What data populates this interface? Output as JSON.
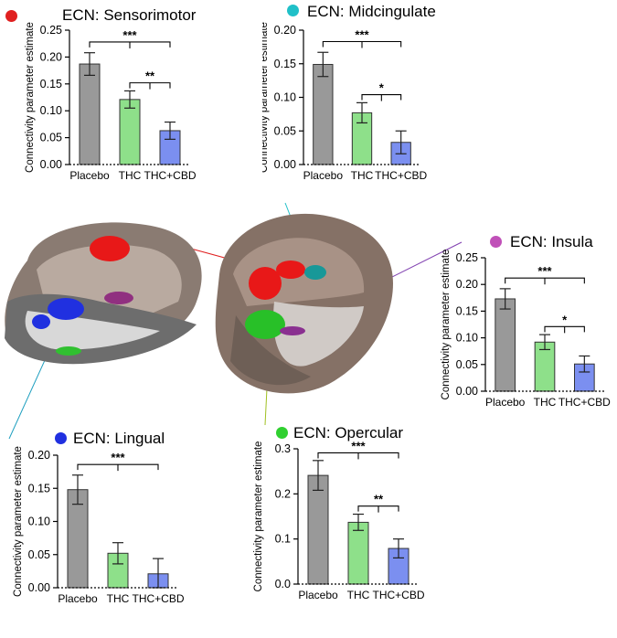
{
  "chart_data": [
    {
      "type": "bar",
      "title": "ECN: Sensorimotor",
      "dot_color": "#e02020",
      "ylabel": "Connectivity parameter estimate",
      "categories": [
        "Placebo",
        "THC",
        "THC+CBD"
      ],
      "values": [
        0.187,
        0.121,
        0.063
      ],
      "errors": [
        0.021,
        0.016,
        0.016
      ],
      "ylim": [
        0,
        0.25
      ],
      "yticks": [
        "0.00",
        "0.05",
        "0.10",
        "0.15",
        "0.20",
        "0.25"
      ],
      "brackets": [
        {
          "from": 0,
          "to": 2,
          "label": "***"
        },
        {
          "from": 1,
          "to": 2,
          "label": "**"
        }
      ]
    },
    {
      "type": "bar",
      "title": "ECN: Midcingulate",
      "dot_color": "#20c0c8",
      "ylabel": "Connectivity parameter estimate",
      "categories": [
        "Placebo",
        "THC",
        "THC+CBD"
      ],
      "values": [
        0.149,
        0.077,
        0.033
      ],
      "errors": [
        0.018,
        0.015,
        0.017
      ],
      "ylim": [
        0,
        0.2
      ],
      "yticks": [
        "0.00",
        "0.05",
        "0.10",
        "0.15",
        "0.20"
      ],
      "brackets": [
        {
          "from": 0,
          "to": 2,
          "label": "***"
        },
        {
          "from": 1,
          "to": 2,
          "label": "*"
        }
      ]
    },
    {
      "type": "bar",
      "title": "ECN: Insula",
      "dot_color": "#c050b8",
      "ylabel": "Connectivity parameter estimate",
      "categories": [
        "Placebo",
        "THC",
        "THC+CBD"
      ],
      "values": [
        0.173,
        0.092,
        0.051
      ],
      "errors": [
        0.019,
        0.014,
        0.015
      ],
      "ylim": [
        0,
        0.25
      ],
      "yticks": [
        "0.00",
        "0.05",
        "0.10",
        "0.15",
        "0.20",
        "0.25"
      ],
      "brackets": [
        {
          "from": 0,
          "to": 2,
          "label": "***"
        },
        {
          "from": 1,
          "to": 2,
          "label": "*"
        }
      ]
    },
    {
      "type": "bar",
      "title": "ECN: Lingual",
      "dot_color": "#2030e0",
      "ylabel": "Connectivity parameter estimate",
      "categories": [
        "Placebo",
        "THC",
        "THC+CBD"
      ],
      "values": [
        0.148,
        0.052,
        0.021
      ],
      "errors": [
        0.022,
        0.016,
        0.023
      ],
      "ylim": [
        0,
        0.2
      ],
      "yticks": [
        "0.00",
        "0.05",
        "0.10",
        "0.15",
        "0.20"
      ],
      "brackets": [
        {
          "from": 0,
          "to": 2,
          "label": "***"
        }
      ]
    },
    {
      "type": "bar",
      "title": "ECN: Opercular",
      "dot_color": "#30d030",
      "ylabel": "Connectivity parameter estimate",
      "categories": [
        "Placebo",
        "THC",
        "THC+CBD"
      ],
      "values": [
        0.241,
        0.137,
        0.079
      ],
      "errors": [
        0.033,
        0.018,
        0.021
      ],
      "ylim": [
        0,
        0.3
      ],
      "yticks": [
        "0.0",
        "0.1",
        "0.2",
        "0.3"
      ],
      "brackets": [
        {
          "from": 0,
          "to": 2,
          "label": "***"
        },
        {
          "from": 1,
          "to": 2,
          "label": "**"
        }
      ]
    }
  ],
  "bar_colors": [
    "#999999",
    "#8ee08a",
    "#7b8ff0"
  ],
  "bar_edge_color": "#333333"
}
